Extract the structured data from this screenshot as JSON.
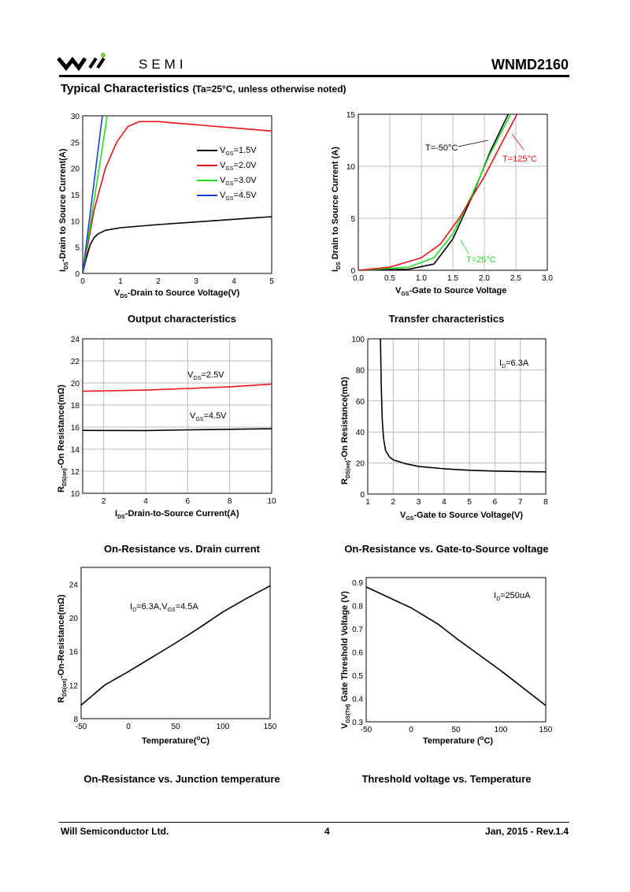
{
  "header": {
    "logo_text": "SEMI",
    "logo_mark": "wil",
    "part_number": "WNMD2160",
    "title": "Typical Characteristics",
    "title_note": "(Ta=25°C, unless otherwise noted)"
  },
  "footer": {
    "company": "Will Semiconductor Ltd.",
    "page": "4",
    "date_rev": "Jan, 2015 - Rev.1.4"
  },
  "colors": {
    "black": "#000000",
    "red": "#e8141b",
    "green": "#22dd22",
    "blue": "#1a3fd8"
  },
  "chart_data": [
    {
      "type": "line",
      "title": "Output characteristics",
      "xlabel": {
        "main": "V",
        "sub": "DS",
        "rest": "-Drain to Source Voltage(V)"
      },
      "ylabel": {
        "main": "I",
        "sub": "DS",
        "rest": "-Drain to Source Current(A)"
      },
      "xlim": [
        0,
        5
      ],
      "ylim": [
        0,
        30
      ],
      "xticks": [
        "0",
        "1",
        "2",
        "3",
        "4",
        "5"
      ],
      "yticks": [
        "0",
        "5",
        "10",
        "15",
        "20",
        "25",
        "30"
      ],
      "grid": false,
      "legend": "top-right",
      "series": [
        {
          "name": "VGS=1.5V",
          "label_main": "V",
          "label_sub": "GS",
          "label_rest": "=1.5V",
          "color": "#000000",
          "points": [
            [
              0,
              0
            ],
            [
              0.1,
              3
            ],
            [
              0.2,
              5.5
            ],
            [
              0.3,
              6.8
            ],
            [
              0.4,
              7.5
            ],
            [
              0.6,
              8.2
            ],
            [
              1,
              8.7
            ],
            [
              2,
              9.3
            ],
            [
              3,
              9.8
            ],
            [
              4,
              10.3
            ],
            [
              5,
              10.8
            ]
          ]
        },
        {
          "name": "VGS=2.0V",
          "label_main": "V",
          "label_sub": "GS",
          "label_rest": "=2.0V",
          "color": "#e8141b",
          "points": [
            [
              0,
              0
            ],
            [
              0.3,
              12
            ],
            [
              0.6,
              20
            ],
            [
              0.9,
              25
            ],
            [
              1.2,
              28
            ],
            [
              1.5,
              28.9
            ],
            [
              2,
              28.9
            ],
            [
              3,
              28.3
            ],
            [
              4,
              27.7
            ],
            [
              5,
              27.1
            ]
          ]
        },
        {
          "name": "VGS=3.0V",
          "label_main": "V",
          "label_sub": "GS",
          "label_rest": "=3.0V",
          "color": "#22dd22",
          "points": [
            [
              0,
              0
            ],
            [
              0.65,
              30
            ]
          ]
        },
        {
          "name": "VGS=4.5V",
          "label_main": "V",
          "label_sub": "GS",
          "label_rest": "=4.5V",
          "color": "#1a3fd8",
          "points": [
            [
              0,
              0
            ],
            [
              0.52,
              30
            ]
          ]
        }
      ]
    },
    {
      "type": "line",
      "title": "Transfer characteristics",
      "xlabel": {
        "main": "V",
        "sub": "GS",
        "rest": "-Gate to Source Voltage"
      },
      "ylabel": {
        "main": "I",
        "sub": "DS",
        "rest": " Drain to Source Current (A)"
      },
      "xlim": [
        0,
        3
      ],
      "ylim": [
        0,
        15
      ],
      "xticks": [
        "0.0",
        "0.5",
        "1.0",
        "1.5",
        "2.0",
        "2.5",
        "3.0"
      ],
      "yticks": [
        "0",
        "5",
        "10",
        "15"
      ],
      "grid": true,
      "series": [
        {
          "name": "T=-50°C",
          "color": "#000000",
          "points": [
            [
              0,
              0
            ],
            [
              0.8,
              0.1
            ],
            [
              1.2,
              0.6
            ],
            [
              1.5,
              3
            ],
            [
              1.8,
              7
            ],
            [
              2.1,
              11.5
            ],
            [
              2.38,
              15
            ]
          ]
        },
        {
          "name": "T=25°C",
          "color": "#22dd22",
          "points": [
            [
              0,
              0
            ],
            [
              0.8,
              0.3
            ],
            [
              1.2,
              1.2
            ],
            [
              1.5,
              3.5
            ],
            [
              1.8,
              7.2
            ],
            [
              2.1,
              11.3
            ],
            [
              2.42,
              15
            ]
          ]
        },
        {
          "name": "T=125°C",
          "color": "#e8141b",
          "points": [
            [
              0,
              0
            ],
            [
              0.5,
              0.3
            ],
            [
              1,
              1.2
            ],
            [
              1.3,
              2.5
            ],
            [
              1.6,
              5
            ],
            [
              2,
              9
            ],
            [
              2.3,
              12.5
            ],
            [
              2.52,
              15
            ]
          ]
        }
      ]
    },
    {
      "type": "line",
      "title": "On-Resistance vs. Drain current",
      "xlabel": {
        "main": "I",
        "sub": "DS",
        "rest": "-Drain-to-Source Current(A)"
      },
      "ylabel": {
        "main": "R",
        "sub": "DS(on)",
        "rest": "-On Resistance(mΩ)"
      },
      "xlim": [
        1,
        10
      ],
      "ylim": [
        10,
        24
      ],
      "xticks": [
        "2",
        "4",
        "6",
        "8",
        "10"
      ],
      "xtickvals": [
        2,
        4,
        6,
        8,
        10
      ],
      "yticks": [
        "10",
        "12",
        "14",
        "16",
        "18",
        "20",
        "22",
        "24"
      ],
      "grid": true,
      "series": [
        {
          "name": "VGS=2.5V",
          "label_main": "V",
          "label_sub": "GS",
          "label_rest": "=2.5V",
          "color": "#e8141b",
          "points": [
            [
              1,
              19.25
            ],
            [
              4,
              19.35
            ],
            [
              6,
              19.5
            ],
            [
              8,
              19.65
            ],
            [
              10,
              19.9
            ]
          ]
        },
        {
          "name": "VGS=4.5V",
          "label_main": "V",
          "label_sub": "GS",
          "label_rest": "=4.5V",
          "color": "#000000",
          "points": [
            [
              1,
              15.7
            ],
            [
              4,
              15.68
            ],
            [
              6,
              15.75
            ],
            [
              8,
              15.8
            ],
            [
              10,
              15.85
            ]
          ]
        }
      ]
    },
    {
      "type": "line",
      "title": "On-Resistance vs. Gate-to-Source voltage",
      "xlabel": {
        "main": "V",
        "sub": "GS",
        "rest": "-Gate to Source Voltage(V)"
      },
      "ylabel": {
        "main": "R",
        "sub": "DS(on)",
        "rest": "-On Resistance(mΩ)"
      },
      "xlim": [
        1,
        8
      ],
      "ylim": [
        0,
        100
      ],
      "xticks": [
        "1",
        "2",
        "3",
        "4",
        "5",
        "6",
        "7",
        "8"
      ],
      "yticks": [
        "0",
        "20",
        "40",
        "60",
        "80",
        "100"
      ],
      "grid": true,
      "annotation": {
        "main": "I",
        "sub": "D",
        "rest": "=6.3A"
      },
      "series": [
        {
          "name": "ID=6.3A",
          "color": "#000000",
          "points": [
            [
              1.5,
              100
            ],
            [
              1.53,
              70
            ],
            [
              1.57,
              48
            ],
            [
              1.62,
              36
            ],
            [
              1.7,
              28
            ],
            [
              1.85,
              24
            ],
            [
              2,
              22
            ],
            [
              2.5,
              19.5
            ],
            [
              3,
              17.8
            ],
            [
              4,
              16.3
            ],
            [
              5,
              15.3
            ],
            [
              6,
              14.8
            ],
            [
              7,
              14.5
            ],
            [
              8,
              14.3
            ]
          ]
        }
      ]
    },
    {
      "type": "line",
      "title": "On-Resistance vs. Junction temperature",
      "xlabel": {
        "main": "Temperature(",
        "sup": "o",
        "rest": "C)"
      },
      "ylabel": {
        "main": "R",
        "sub": "DS(on)",
        "rest": "-On-Resistance(mΩ)"
      },
      "xlim": [
        -50,
        150
      ],
      "ylim": [
        8,
        26
      ],
      "xticks": [
        "-50",
        "0",
        "50",
        "100",
        "150"
      ],
      "xtickvals": [
        -50,
        0,
        50,
        100,
        150
      ],
      "yticks": [
        "8",
        "12",
        "16",
        "20",
        "24"
      ],
      "ytickvals": [
        8,
        12,
        16,
        20,
        24
      ],
      "grid": false,
      "annotation": {
        "main": "I",
        "sub": "D",
        "rest": "=6.3A,V",
        "sub2": "GS",
        "rest2": "=4.5A"
      },
      "series": [
        {
          "name": "ID=6.3A,VGS=4.5A",
          "color": "#000000",
          "points": [
            [
              -50,
              9.6
            ],
            [
              -25,
              12
            ],
            [
              0,
              13.6
            ],
            [
              25,
              15.3
            ],
            [
              50,
              17
            ],
            [
              75,
              18.8
            ],
            [
              100,
              20.7
            ],
            [
              125,
              22.3
            ],
            [
              150,
              23.8
            ]
          ]
        }
      ]
    },
    {
      "type": "line",
      "title": "Threshold voltage vs. Temperature",
      "xlabel": {
        "main": "Temperature (",
        "sup": "o",
        "rest": "C)"
      },
      "ylabel": {
        "main": "V",
        "sub": "GS(TH)",
        "rest": " Gate Threshold Voltage (V)"
      },
      "xlim": [
        -50,
        150
      ],
      "ylim": [
        0.3,
        0.92
      ],
      "xticks": [
        "-50",
        "0",
        "50",
        "100",
        "150"
      ],
      "xtickvals": [
        -50,
        0,
        50,
        100,
        150
      ],
      "yticks": [
        "0.3",
        "0.4",
        "0.5",
        "0.6",
        "0.7",
        "0.8",
        "0.9"
      ],
      "ytickvals": [
        0.3,
        0.4,
        0.5,
        0.6,
        0.7,
        0.8,
        0.9
      ],
      "grid": false,
      "annotation": {
        "main": "I",
        "sub": "D",
        "rest": "=250uA"
      },
      "series": [
        {
          "name": "ID=250uA",
          "color": "#000000",
          "points": [
            [
              -50,
              0.88
            ],
            [
              -25,
              0.835
            ],
            [
              0,
              0.79
            ],
            [
              30,
              0.72
            ],
            [
              50,
              0.66
            ],
            [
              100,
              0.52
            ],
            [
              150,
              0.37
            ]
          ]
        }
      ]
    }
  ]
}
